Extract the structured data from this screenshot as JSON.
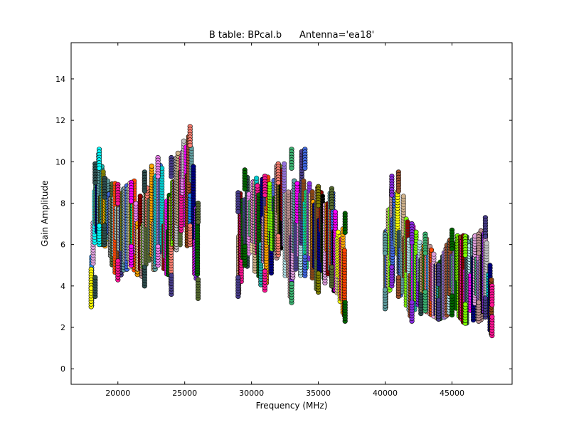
{
  "chart_data": {
    "type": "scatter",
    "title": "B table: BPcal.b      Antenna='ea18'",
    "xlabel": "Frequency (MHz)",
    "ylabel": "Gain Amplitude",
    "xlim": [
      16500,
      49500
    ],
    "ylim": [
      -0.75,
      15.75
    ],
    "xticks": [
      20000,
      25000,
      30000,
      35000,
      40000,
      45000
    ],
    "yticks": [
      0,
      2,
      4,
      6,
      8,
      10,
      12,
      14
    ],
    "grid": false,
    "legend": "none",
    "marker": "circle",
    "palette": [
      "#4169e1",
      "#fa8072",
      "#006400",
      "#2f4f4f",
      "#ffdead",
      "#8a2be2",
      "#00ffff",
      "#8b0000",
      "#ffff00",
      "#ff1493",
      "#808000",
      "#00ff7f",
      "#000080",
      "#d2b48c",
      "#5f9ea0",
      "#a0522d",
      "#ee82ee",
      "#ff4500",
      "#000000",
      "#7fff00",
      "#ffa500",
      "#9370db",
      "#b0e0e6",
      "#556b2f",
      "#dda0dd",
      "#20b2aa",
      "#8b4513",
      "#c0c0c0",
      "#ff00ff",
      "#3cb371",
      "#bc8f8f",
      "#483d8b",
      "#00ced1",
      "#1e90ff"
    ],
    "blocks": [
      {
        "name": "spw-group-1",
        "envelope": [
          [
            18000,
            3.0,
            4.8
          ],
          [
            18300,
            3.5,
            9.9
          ],
          [
            18600,
            6.0,
            10.6
          ],
          [
            19000,
            6.0,
            9.2
          ],
          [
            20000,
            4.3,
            8.9
          ],
          [
            21000,
            5.0,
            9.0
          ],
          [
            22000,
            4.0,
            9.5
          ],
          [
            23000,
            5.0,
            10.2
          ],
          [
            24000,
            3.6,
            10.2
          ],
          [
            25400,
            6.0,
            11.7
          ],
          [
            26000,
            3.4,
            8.0
          ]
        ]
      },
      {
        "name": "spw-group-2",
        "envelope": [
          [
            29000,
            3.5,
            8.5
          ],
          [
            29500,
            5.0,
            9.6
          ],
          [
            31000,
            3.8,
            9.3
          ],
          [
            32000,
            5.5,
            9.9
          ],
          [
            33000,
            3.2,
            10.6
          ],
          [
            34000,
            4.5,
            10.6
          ],
          [
            35000,
            3.7,
            8.8
          ],
          [
            36000,
            4.0,
            8.7
          ],
          [
            37000,
            2.3,
            7.5
          ]
        ]
      },
      {
        "name": "spw-group-3",
        "envelope": [
          [
            40000,
            2.9,
            6.5
          ],
          [
            40500,
            4.0,
            9.3
          ],
          [
            41000,
            3.5,
            9.5
          ],
          [
            42000,
            2.3,
            7.0
          ],
          [
            43000,
            2.8,
            6.5
          ],
          [
            44000,
            2.4,
            5.0
          ],
          [
            45000,
            2.6,
            6.7
          ],
          [
            46000,
            2.2,
            6.4
          ],
          [
            47000,
            2.3,
            6.5
          ],
          [
            47500,
            2.5,
            7.3
          ],
          [
            48000,
            1.6,
            4.0
          ]
        ]
      }
    ]
  }
}
